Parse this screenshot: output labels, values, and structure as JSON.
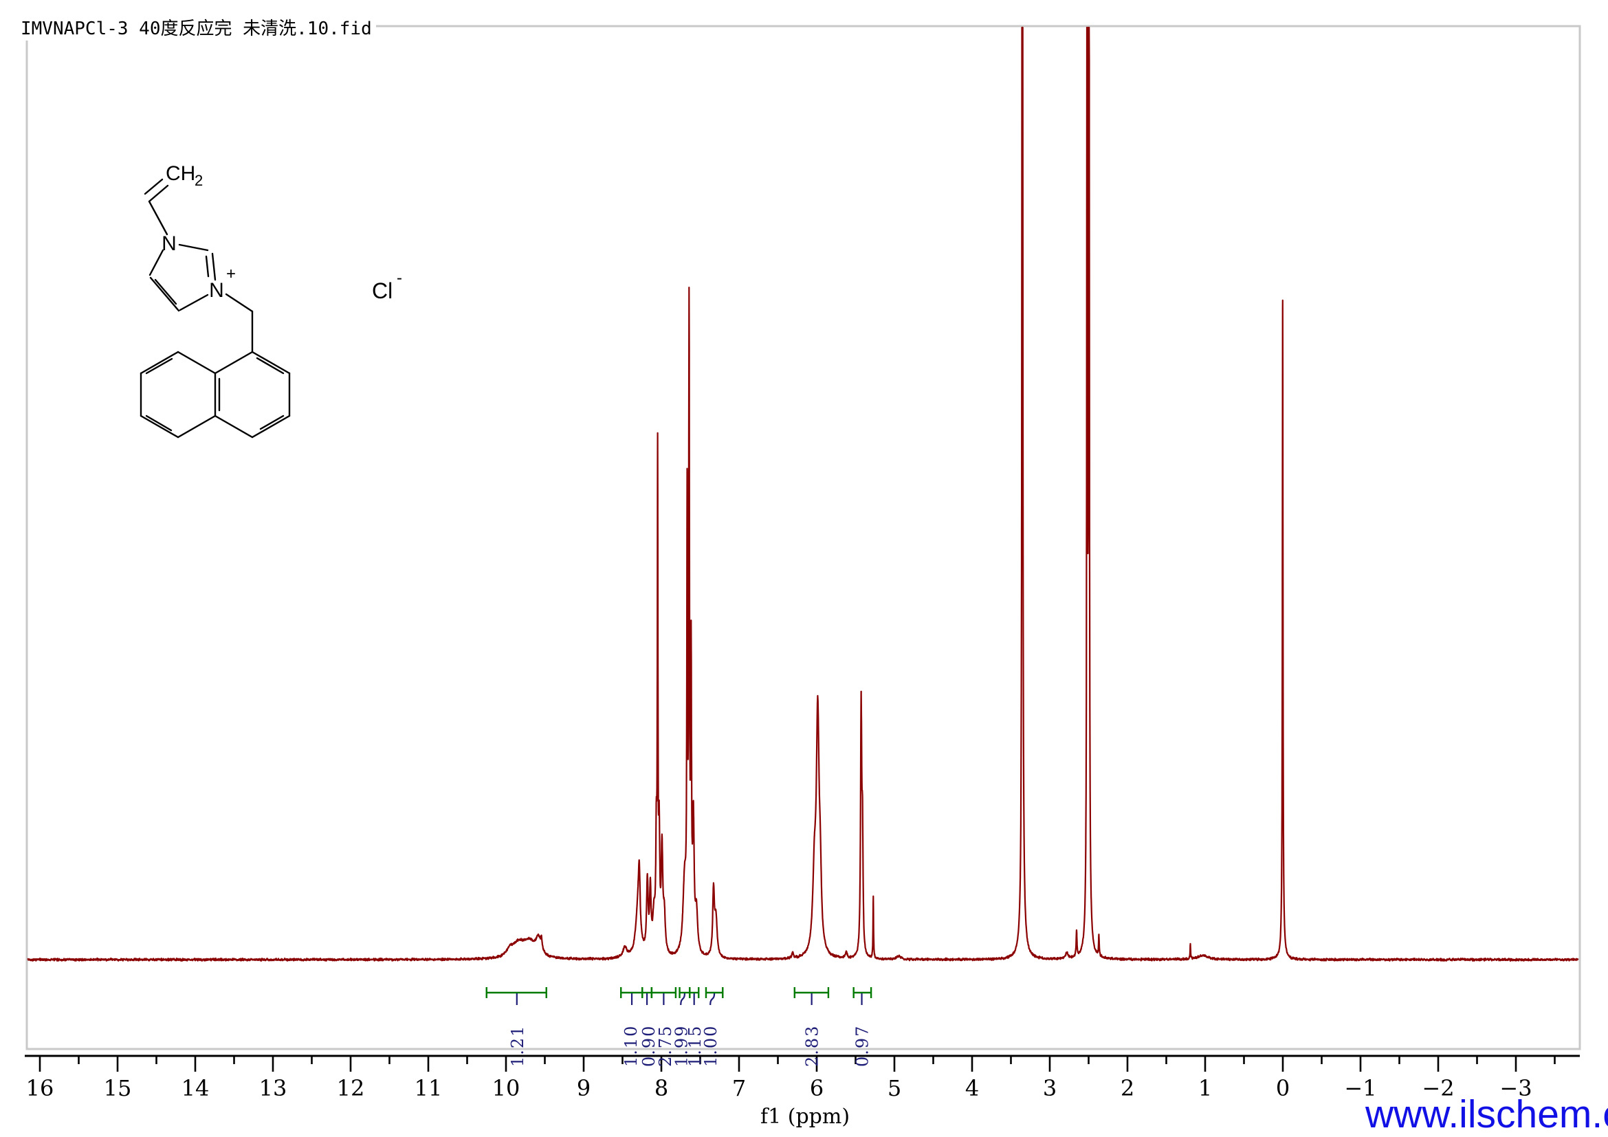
{
  "header": {
    "title": "IMVNAPCl-3 40度反应完 未清洗.10.fid"
  },
  "watermark": {
    "text": "www.ilschem.cn",
    "color": "#1111E6"
  },
  "colors": {
    "trace": "#8B0000",
    "integral_bracket": "#007A00",
    "integral_text": "#1E1E78",
    "axis": "#000000",
    "border": "#C9C9C9",
    "structure": "#000000",
    "background": "#FFFFFF"
  },
  "molecule": {
    "labels": {
      "vinyl_main": "CH",
      "vinyl_sub": "2",
      "n_top": "N",
      "n_bottom": "N",
      "plus": "+",
      "counterion": "Cl",
      "counterion_charge": "-"
    }
  },
  "axis": {
    "label": "f1 (ppm)",
    "major_tick_labels": [
      "16",
      "15",
      "14",
      "13",
      "12",
      "11",
      "10",
      "9",
      "8",
      "7",
      "6",
      "5",
      "4",
      "3",
      "2",
      "1",
      "0",
      "−1",
      "−2",
      "−3"
    ],
    "ppm_left": 16,
    "ppm_right": -3,
    "minor_step": 0.5
  },
  "chart_data": {
    "type": "line",
    "subtype": "1H-NMR-spectrum",
    "title": "IMVNAPCl-3 40度反应完 未清洗.10.fid",
    "xlabel": "f1 (ppm)",
    "x_range": [
      16.16,
      -3.81
    ],
    "x_axis_reversed": true,
    "grid": false,
    "legend": false,
    "peaks_ppm_height_halfwidth": [
      [
        9.95,
        10,
        0.05
      ],
      [
        9.84,
        20,
        0.09
      ],
      [
        9.7,
        22,
        0.09
      ],
      [
        9.585,
        24,
        0.04
      ],
      [
        9.545,
        15,
        0.012
      ],
      [
        8.47,
        15,
        0.03
      ],
      [
        8.3,
        70,
        0.035
      ],
      [
        8.285,
        80,
        0.013
      ],
      [
        8.18,
        105,
        0.012
      ],
      [
        8.142,
        90,
        0.011
      ],
      [
        8.095,
        55,
        0.02
      ],
      [
        8.065,
        150,
        0.008
      ],
      [
        8.048,
        690,
        0.0045
      ],
      [
        8.028,
        165,
        0.009
      ],
      [
        7.992,
        150,
        0.012
      ],
      [
        7.962,
        55,
        0.015
      ],
      [
        7.7,
        110,
        0.025
      ],
      [
        7.668,
        610,
        0.005
      ],
      [
        7.643,
        905,
        0.006
      ],
      [
        7.617,
        400,
        0.006
      ],
      [
        7.588,
        185,
        0.012
      ],
      [
        7.548,
        60,
        0.018
      ],
      [
        7.328,
        95,
        0.013
      ],
      [
        7.297,
        55,
        0.018
      ],
      [
        6.31,
        9,
        0.01
      ],
      [
        6.03,
        110,
        0.025
      ],
      [
        5.987,
        335,
        0.021
      ],
      [
        5.955,
        85,
        0.018
      ],
      [
        5.62,
        9,
        0.015
      ],
      [
        5.428,
        360,
        0.009
      ],
      [
        5.411,
        160,
        0.008
      ],
      [
        5.272,
        90,
        0.004
      ],
      [
        4.95,
        5,
        0.03
      ],
      [
        3.353,
        2600,
        0.005
      ],
      [
        3.35,
        70,
        0.03
      ],
      [
        2.78,
        8,
        0.02
      ],
      [
        2.655,
        36,
        0.006
      ],
      [
        2.52,
        1900,
        0.004
      ],
      [
        2.496,
        2400,
        0.0045
      ],
      [
        2.507,
        110,
        0.02
      ],
      [
        2.368,
        30,
        0.005
      ],
      [
        1.19,
        21,
        0.004
      ],
      [
        1.03,
        6,
        0.08
      ],
      [
        0.002,
        920,
        0.0045
      ],
      [
        0.0,
        40,
        0.02
      ]
    ],
    "integrals": [
      {
        "value": "1.21",
        "from": 10.25,
        "to": 9.48,
        "leader": 9.86,
        "label_ppm": 9.86
      },
      {
        "value": "1.10",
        "from": 8.52,
        "to": 8.245,
        "leader": 8.38,
        "label_ppm": 8.4
      },
      {
        "value": "0.90",
        "from": 8.245,
        "to": 8.125,
        "leader": 8.185,
        "label_ppm": 8.17
      },
      {
        "value": "2.75",
        "from": 8.125,
        "to": 7.815,
        "leader": 7.97,
        "label_ppm": 7.955
      },
      {
        "value": "1.99",
        "from": 7.765,
        "to": 7.635,
        "leader": 7.7,
        "label_ppm": 7.75
      },
      {
        "value": "1.15",
        "from": 7.635,
        "to": 7.52,
        "leader": 7.578,
        "label_ppm": 7.575
      },
      {
        "value": "1.00",
        "from": 7.425,
        "to": 7.21,
        "leader": 7.318,
        "label_ppm": 7.37
      },
      {
        "value": "2.83",
        "from": 6.285,
        "to": 5.85,
        "leader": 6.065,
        "label_ppm": 6.065
      },
      {
        "value": "0.97",
        "from": 5.525,
        "to": 5.3,
        "leader": 5.42,
        "label_ppm": 5.42
      }
    ]
  }
}
